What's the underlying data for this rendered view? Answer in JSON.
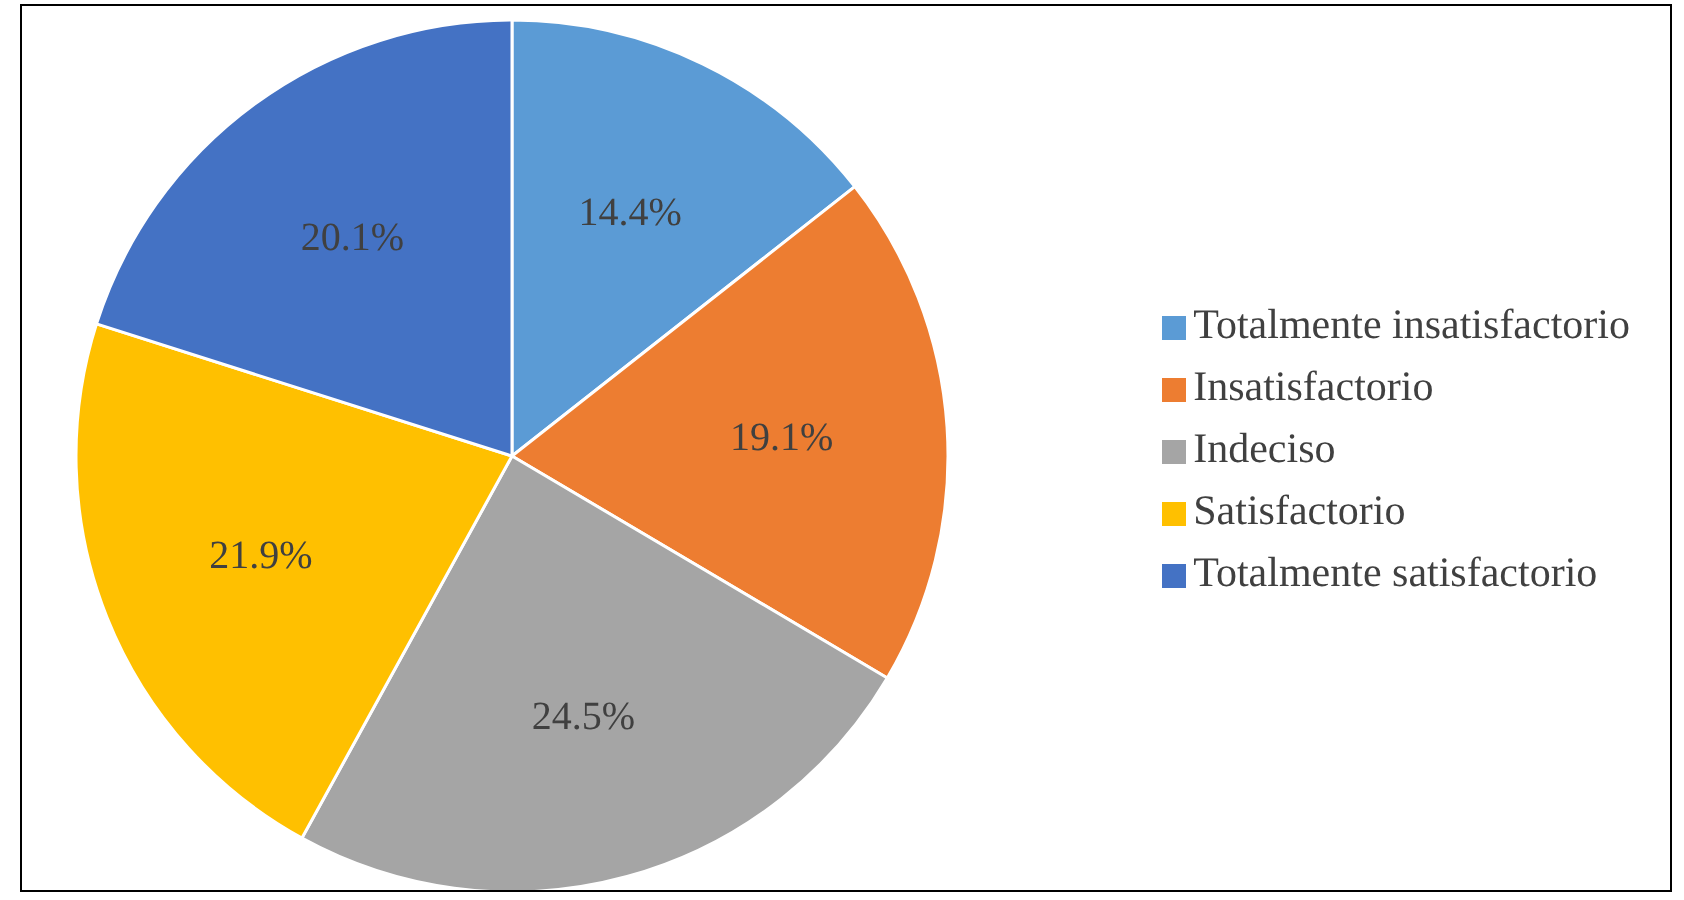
{
  "chart_data": {
    "type": "pie",
    "categories": [
      "Totalmente insatisfactorio",
      "Insatisfactorio",
      "Indeciso",
      "Satisfactorio",
      "Totalmente satisfactorio"
    ],
    "values": [
      14.4,
      19.1,
      24.5,
      21.9,
      20.1
    ],
    "value_labels": [
      "14.4%",
      "19.1%",
      "24.5%",
      "21.9%",
      "20.1%"
    ],
    "colors": [
      "#5b9bd5",
      "#ed7d31",
      "#a5a5a5",
      "#ffc000",
      "#4472c4"
    ],
    "legend": "right"
  }
}
